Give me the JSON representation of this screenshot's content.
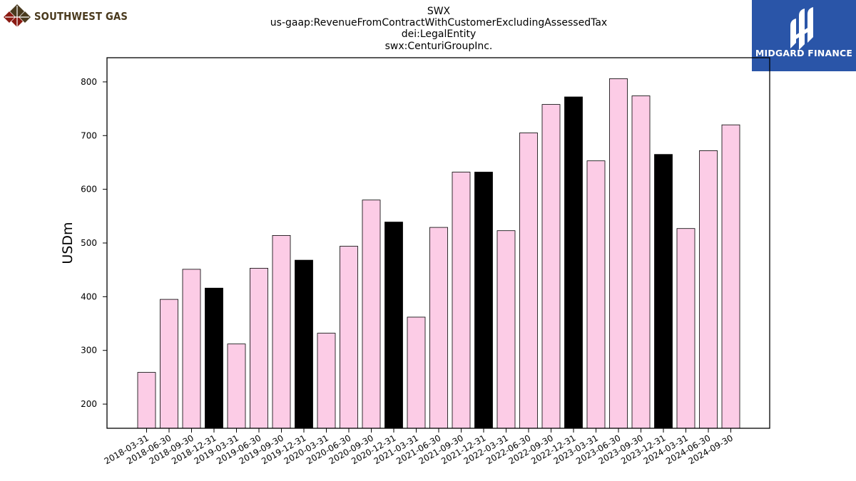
{
  "logos": {
    "left_text": "SOUTHWEST GAS",
    "right_text": "MIDGARD FINANCE",
    "left_icon": "southwest-gas-diamond-logo",
    "right_icon": "midgard-finance-logo"
  },
  "chart_data": {
    "type": "bar",
    "title_lines": [
      "SWX",
      "us-gaap:RevenueFromContractWithCustomerExcludingAssessedTax",
      "dei:LegalEntity",
      "swx:CenturiGroupInc."
    ],
    "xlabel": "",
    "ylabel": "USDm",
    "ylim": [
      155,
      845
    ],
    "yticks": [
      200,
      300,
      400,
      500,
      600,
      700,
      800
    ],
    "grid": false,
    "legend": "none",
    "colors": {
      "quarter": "#fccce6",
      "year_end": "#000000",
      "edge": "#000000"
    },
    "categories": [
      "2018-03-31",
      "2018-06-30",
      "2018-09-30",
      "2018-12-31",
      "2019-03-31",
      "2019-06-30",
      "2019-09-30",
      "2019-12-31",
      "2020-03-31",
      "2020-06-30",
      "2020-09-30",
      "2020-12-31",
      "2021-03-31",
      "2021-06-30",
      "2021-09-30",
      "2021-12-31",
      "2022-03-31",
      "2022-06-30",
      "2022-09-30",
      "2022-12-31",
      "2023-03-31",
      "2023-06-30",
      "2023-09-30",
      "2023-12-31",
      "2024-03-31",
      "2024-06-30",
      "2024-09-30"
    ],
    "values": [
      259,
      395,
      451,
      416,
      312,
      453,
      514,
      468,
      332,
      494,
      580,
      539,
      362,
      529,
      632,
      632,
      523,
      705,
      758,
      772,
      653,
      806,
      774,
      665,
      527,
      672,
      720
    ],
    "highlight": [
      false,
      false,
      false,
      true,
      false,
      false,
      false,
      true,
      false,
      false,
      false,
      true,
      false,
      false,
      false,
      true,
      false,
      false,
      false,
      true,
      false,
      false,
      false,
      true,
      false,
      false,
      false
    ]
  }
}
